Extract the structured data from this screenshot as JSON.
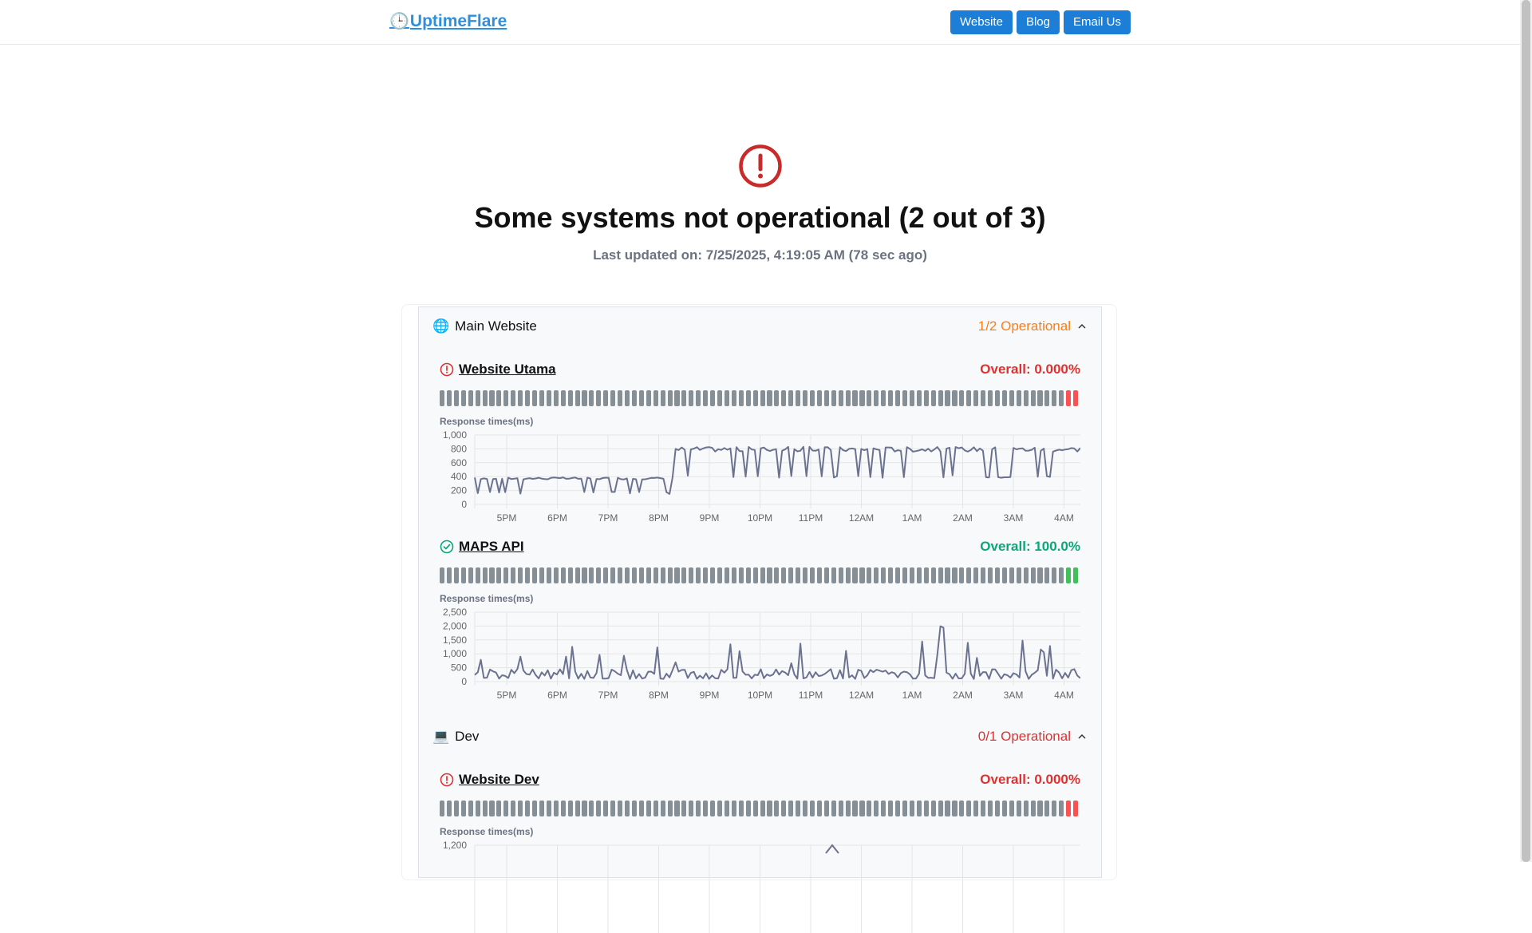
{
  "header": {
    "logo_icon": "🕒",
    "logo_text": "UptimeFlare",
    "nav": [
      "Website",
      "Blog",
      "Email Us"
    ]
  },
  "hero": {
    "icon": "alert-circle-icon",
    "title": "Some systems not operational (2 out of 3)",
    "updated": "Last updated on: 7/25/2025, 4:19:05 AM (78 sec ago)"
  },
  "colors": {
    "accent": "#1c7ed6",
    "error": "#e03131",
    "ok": "#0ca678",
    "warn": "#fd7e14",
    "bar_unknown": "#868e96",
    "bar_ok": "#40c057",
    "bar_down": "#fa5252",
    "line": "#6b7290"
  },
  "groups": [
    {
      "emoji": "🌐",
      "name": "Main Website",
      "status": "1/2 Operational",
      "status_color": "#fd7e14",
      "monitors": [
        {
          "name": "Website Utama",
          "state": "down",
          "overall": "Overall: 0.000%",
          "bars": {
            "gray": 88,
            "last": 2,
            "last_color": "down"
          },
          "response_label": "Response times(ms)",
          "chart_data": {
            "type": "line",
            "y_ticks": [
              "1,000",
              "800",
              "600",
              "400",
              "200",
              "0"
            ],
            "ylim": [
              0,
              1000
            ],
            "x_ticks": [
              "5PM",
              "6PM",
              "7PM",
              "8PM",
              "9PM",
              "10PM",
              "11PM",
              "12AM",
              "1AM",
              "2AM",
              "3AM",
              "4AM"
            ],
            "pattern": "shift"
          }
        },
        {
          "name": "MAPS API",
          "state": "up",
          "overall": "Overall: 100.0%",
          "bars": {
            "gray": 88,
            "last": 2,
            "last_color": "ok"
          },
          "response_label": "Response times(ms)",
          "chart_data": {
            "type": "line",
            "y_ticks": [
              "2,500",
              "2,000",
              "1,500",
              "1,000",
              "500",
              "0"
            ],
            "ylim": [
              0,
              2500
            ],
            "x_ticks": [
              "5PM",
              "6PM",
              "7PM",
              "8PM",
              "9PM",
              "10PM",
              "11PM",
              "12AM",
              "1AM",
              "2AM",
              "3AM",
              "4AM"
            ],
            "pattern": "spikes"
          }
        }
      ]
    },
    {
      "emoji": "💻",
      "name": "Dev",
      "status": "0/1 Operational",
      "status_color": "#e03131",
      "monitors": [
        {
          "name": "Website Dev",
          "state": "down",
          "overall": "Overall: 0.000%",
          "bars": {
            "gray": 88,
            "last": 2,
            "last_color": "down"
          },
          "response_label": "Response times(ms)",
          "chart_data": {
            "type": "line",
            "y_ticks": [
              "1,200"
            ],
            "ylim": [
              0,
              1200
            ],
            "x_ticks": [],
            "pattern": "partial"
          }
        }
      ]
    }
  ]
}
